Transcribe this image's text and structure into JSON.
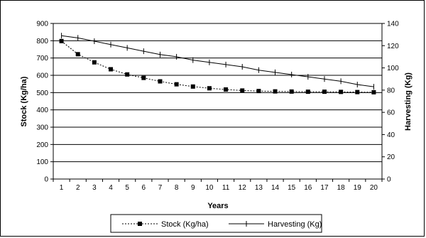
{
  "chart_data": {
    "type": "line",
    "title": "",
    "xlabel": "Years",
    "ylabel": "Stock (Kg/ha)",
    "y2label": "Harvesting (Kg)",
    "x": [
      1,
      2,
      3,
      4,
      5,
      6,
      7,
      8,
      9,
      10,
      11,
      12,
      13,
      14,
      15,
      16,
      17,
      18,
      19,
      20
    ],
    "ylim": [
      0,
      900
    ],
    "y2lim": [
      0,
      140
    ],
    "yticks": [
      0,
      100,
      200,
      300,
      400,
      500,
      600,
      700,
      800,
      900
    ],
    "y2ticks": [
      0,
      20,
      40,
      60,
      80,
      100,
      120,
      140
    ],
    "grid": true,
    "legend_position": "bottom",
    "series": [
      {
        "name": "Stock (Kg/ha)",
        "axis": "left",
        "style": "dotted-square",
        "values": [
          798,
          722,
          675,
          635,
          605,
          585,
          565,
          548,
          535,
          525,
          518,
          512,
          509,
          507,
          506,
          505,
          505,
          504,
          503,
          502
        ]
      },
      {
        "name": "Harvesting (Kg)",
        "axis": "right",
        "style": "solid-plus",
        "values": [
          129,
          127,
          124,
          121,
          118,
          115,
          112,
          110,
          107,
          105,
          103,
          101,
          98,
          96,
          94,
          92,
          90,
          88,
          85,
          83
        ]
      }
    ]
  }
}
